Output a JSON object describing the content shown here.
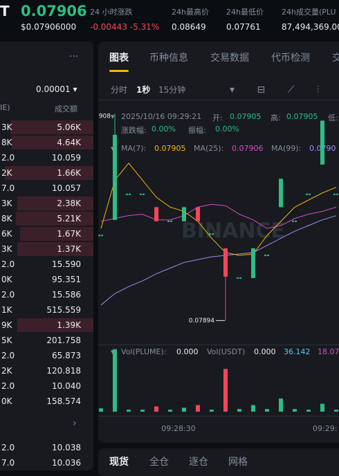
{
  "header": {
    "symbol": "T",
    "price": "0.07906",
    "price_usd": "$0.07906000",
    "change_label": "24 小时涨跌",
    "change_value": "-0.00443 -5.31%",
    "high_label": "24h最高价",
    "high_value": "0.08649",
    "low_label": "24h最低价",
    "low_value": "0.07761",
    "volume_label": "24h成交量(PLU",
    "volume_value": "87,494,369.00"
  },
  "order_book": {
    "menu": "···",
    "precision": "0.00001 ▾",
    "col_left": "IE)",
    "col_right": "成交额",
    "rows": [
      [
        "3K",
        "5.06K"
      ],
      [
        "8K",
        "4.64K"
      ],
      [
        "2.0",
        "10.059"
      ],
      [
        "2K",
        "1.66K"
      ],
      [
        "7.0",
        "10.057"
      ],
      [
        "3K",
        "2.38K"
      ],
      [
        "8K",
        "5.21K"
      ],
      [
        "6K",
        "1.67K"
      ],
      [
        "3K",
        "1.37K"
      ],
      [
        "2.0",
        "15.590"
      ],
      [
        "0K",
        "95.351"
      ],
      [
        "2.0",
        "15.586"
      ],
      [
        "1K",
        "515.559"
      ],
      [
        "9K",
        "1.39K"
      ],
      [
        "5K",
        "201.758"
      ],
      [
        "2.0",
        "65.873"
      ],
      [
        "2K",
        "120.818"
      ],
      [
        "2.0",
        "10.040"
      ],
      [
        "0K",
        "158.574"
      ]
    ],
    "more": "›",
    "bottom_rows": [
      [
        "2.0",
        "10.038"
      ],
      [
        "7.0",
        "10.036"
      ]
    ]
  },
  "tabs": [
    "图表",
    "币种信息",
    "交易数据",
    "代币检测",
    "交"
  ],
  "intervals": [
    "分时",
    "1秒",
    "15分钟"
  ],
  "info": {
    "time": "2025/10/16 09:29:21",
    "open_label": "开:",
    "open": "0.07905",
    "high_label": "高:",
    "high": "0.07905",
    "low_label": "低:",
    "change_label": "涨跌幅:",
    "change": "0.00%",
    "amp_label": "振幅:",
    "amp": "0.00%",
    "ma7_label": "MA(7):",
    "ma7": "0.07905",
    "ma25_label": "MA(25):",
    "ma25": "0.07906",
    "ma99_label": "MA(99):",
    "ma99": "0.0790",
    "vol_label": "Vol(PLUME):",
    "vol": "0.000",
    "volusdt_label": "Vol(USDT)",
    "volusdt": "0.000",
    "vol_ma1": "36.142",
    "vol_ma2": "18.07"
  },
  "chart_data": {
    "type": "candlestick",
    "watermark": "BINANCE",
    "annotations": [
      "0.07908",
      "0.07894"
    ],
    "x_labels": [
      "09:28:30",
      "09:29:"
    ],
    "ylim": [
      0.078927,
      0.079088
    ],
    "colors": {
      "up": "#2ebd85",
      "down": "#f6465d",
      "ma7": "#f0b90b",
      "ma25": "#d44fc2",
      "ma99": "#a58cf0"
    },
    "open": [
      0.079,
      0.079011,
      0.079029,
      0.079029,
      0.07902,
      0.07901,
      0.07901,
      0.07902,
      0.079001,
      0.078991,
      0.07897,
      0.07897,
      0.078986,
      0.07902,
      0.07901,
      0.079029,
      0.07905,
      0.079029
    ],
    "high": [
      0.079,
      0.079086,
      0.079029,
      0.079029,
      0.07902,
      0.07901,
      0.07902,
      0.07902,
      0.079001,
      0.078991,
      0.07897,
      0.078991,
      0.078986,
      0.07904,
      0.07901,
      0.079029,
      0.079081,
      0.079029
    ],
    "low": [
      0.079,
      0.079011,
      0.079029,
      0.079029,
      0.07901,
      0.07901,
      0.07901,
      0.07901,
      0.079001,
      0.07894,
      0.07897,
      0.07897,
      0.078986,
      0.07902,
      0.07901,
      0.079029,
      0.07905,
      0.079029
    ],
    "close": [
      0.079,
      0.079071,
      0.079029,
      0.079029,
      0.07901,
      0.07901,
      0.07902,
      0.07901,
      0.079001,
      0.078971,
      0.07897,
      0.078991,
      0.078986,
      0.07904,
      0.07901,
      0.079029,
      0.079081,
      0.079029
    ],
    "ma7": [
      0.079005,
      0.079039,
      0.079051,
      0.079039,
      0.079027,
      0.07902,
      0.079017,
      0.07901,
      0.078998,
      0.078988,
      0.078986,
      0.078987,
      0.079,
      0.07901,
      0.07902,
      0.079025,
      0.07903,
      0.079034
    ],
    "ma25": [
      0.07901,
      0.079012,
      0.079014,
      0.079015,
      0.079011,
      0.079011,
      0.079014,
      0.07902,
      0.079022,
      0.079021,
      0.079015,
      0.079011,
      0.079005,
      0.079007,
      0.079012,
      0.079015,
      0.079017,
      0.07902
    ],
    "ma99": [
      0.078951,
      0.078959,
      0.078964,
      0.078968,
      0.078973,
      0.078977,
      0.078981,
      0.078983,
      0.078985,
      0.078986,
      0.078987,
      0.078988,
      0.078993,
      0.078998,
      0.079003,
      0.079007,
      0.079011,
      0.079014
    ],
    "volume": [
      5,
      95,
      3,
      3,
      8,
      3,
      6,
      10,
      3,
      65,
      4,
      10,
      4,
      20,
      4,
      3,
      12,
      3
    ],
    "vlim": [
      0,
      100
    ]
  },
  "trade_tabs": [
    "现货",
    "全仓",
    "逐仓",
    "网格"
  ]
}
